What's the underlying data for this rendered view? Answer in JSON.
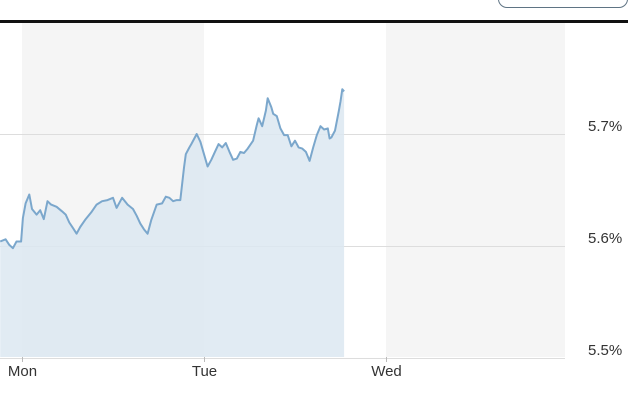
{
  "chart_data": {
    "type": "area",
    "title": "",
    "xlabel": "",
    "ylabel": "",
    "ylim": [
      5.5,
      5.76
    ],
    "xlim": [
      -0.12,
      1.95
    ],
    "x_ticks": [
      {
        "label": "Mon",
        "x": 0
      },
      {
        "label": "Tue",
        "x": 1
      },
      {
        "label": "Wed",
        "x": 2
      }
    ],
    "y_ticks": [
      {
        "label": "5.7%",
        "value": 5.7
      },
      {
        "label": "5.6%",
        "value": 5.6
      },
      {
        "label": "5.5%",
        "value": 5.5
      }
    ],
    "shaded_day_bands": [
      [
        0,
        1
      ],
      [
        2,
        3
      ]
    ],
    "grid": "horizontal",
    "colors": {
      "line": "#7ba7cc",
      "fill": "#dce8f1",
      "band": "#f5f5f5",
      "grid": "#dddddd"
    },
    "series": [
      {
        "values": [
          [
            -0.12,
            5.604
          ],
          [
            -0.09,
            5.606
          ],
          [
            -0.07,
            5.601
          ],
          [
            -0.05,
            5.598
          ],
          [
            -0.03,
            5.604
          ],
          [
            -0.005,
            5.604
          ],
          [
            0.005,
            5.625
          ],
          [
            0.02,
            5.638
          ],
          [
            0.04,
            5.646
          ],
          [
            0.055,
            5.633
          ],
          [
            0.08,
            5.628
          ],
          [
            0.1,
            5.632
          ],
          [
            0.12,
            5.624
          ],
          [
            0.14,
            5.64
          ],
          [
            0.16,
            5.637
          ],
          [
            0.19,
            5.635
          ],
          [
            0.22,
            5.631
          ],
          [
            0.24,
            5.628
          ],
          [
            0.26,
            5.621
          ],
          [
            0.28,
            5.616
          ],
          [
            0.3,
            5.611
          ],
          [
            0.32,
            5.617
          ],
          [
            0.35,
            5.624
          ],
          [
            0.38,
            5.63
          ],
          [
            0.41,
            5.637
          ],
          [
            0.44,
            5.64
          ],
          [
            0.47,
            5.641
          ],
          [
            0.5,
            5.643
          ],
          [
            0.52,
            5.634
          ],
          [
            0.55,
            5.643
          ],
          [
            0.58,
            5.637
          ],
          [
            0.61,
            5.633
          ],
          [
            0.63,
            5.627
          ],
          [
            0.65,
            5.62
          ],
          [
            0.67,
            5.615
          ],
          [
            0.69,
            5.611
          ],
          [
            0.71,
            5.623
          ],
          [
            0.74,
            5.637
          ],
          [
            0.77,
            5.638
          ],
          [
            0.79,
            5.644
          ],
          [
            0.81,
            5.643
          ],
          [
            0.83,
            5.64
          ],
          [
            0.85,
            5.641
          ],
          [
            0.86,
            5.641
          ],
          [
            0.87,
            5.641
          ],
          [
            0.89,
            5.67
          ],
          [
            0.9,
            5.682
          ],
          [
            0.92,
            5.688
          ],
          [
            0.93,
            5.691
          ],
          [
            0.96,
            5.7
          ],
          [
            0.98,
            5.693
          ],
          [
            1.0,
            5.682
          ],
          [
            1.02,
            5.671
          ],
          [
            1.04,
            5.677
          ],
          [
            1.06,
            5.684
          ],
          [
            1.08,
            5.691
          ],
          [
            1.1,
            5.688
          ],
          [
            1.12,
            5.692
          ],
          [
            1.14,
            5.684
          ],
          [
            1.16,
            5.677
          ],
          [
            1.18,
            5.678
          ],
          [
            1.2,
            5.684
          ],
          [
            1.22,
            5.683
          ],
          [
            1.24,
            5.687
          ],
          [
            1.27,
            5.694
          ],
          [
            1.29,
            5.708
          ],
          [
            1.3,
            5.714
          ],
          [
            1.32,
            5.707
          ],
          [
            1.34,
            5.721
          ],
          [
            1.35,
            5.732
          ],
          [
            1.37,
            5.724
          ],
          [
            1.38,
            5.718
          ],
          [
            1.4,
            5.716
          ],
          [
            1.42,
            5.705
          ],
          [
            1.44,
            5.699
          ],
          [
            1.46,
            5.699
          ],
          [
            1.48,
            5.689
          ],
          [
            1.5,
            5.694
          ],
          [
            1.52,
            5.688
          ],
          [
            1.54,
            5.687
          ],
          [
            1.56,
            5.684
          ],
          [
            1.58,
            5.676
          ],
          [
            1.6,
            5.688
          ],
          [
            1.62,
            5.699
          ],
          [
            1.64,
            5.707
          ],
          [
            1.66,
            5.704
          ],
          [
            1.68,
            5.705
          ],
          [
            1.69,
            5.696
          ],
          [
            1.7,
            5.697
          ],
          [
            1.72,
            5.703
          ],
          [
            1.74,
            5.72
          ],
          [
            1.75,
            5.729
          ],
          [
            1.76,
            5.74
          ],
          [
            1.77,
            5.738
          ]
        ]
      }
    ]
  }
}
